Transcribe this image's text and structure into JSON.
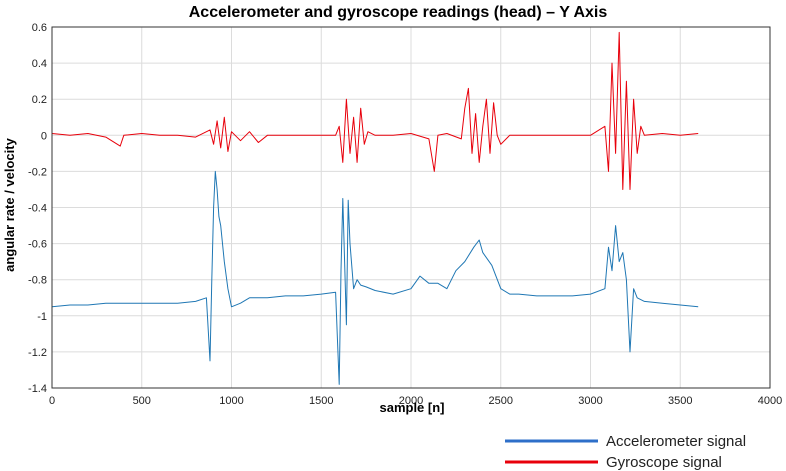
{
  "chart_data": {
    "type": "line",
    "title": "Accelerometer and gyroscope readings (head) – Y Axis",
    "xlabel": "sample [n]",
    "ylabel": "angular rate / velocity",
    "xlim": [
      0,
      4000
    ],
    "ylim": [
      -1.4,
      0.6
    ],
    "x_ticks": [
      0,
      500,
      1000,
      1500,
      2000,
      2500,
      3000,
      3500,
      4000
    ],
    "y_ticks": [
      -1.4,
      -1.2,
      -1,
      -0.8,
      -0.6,
      -0.4,
      -0.2,
      0,
      0.2,
      0.4,
      0.6
    ],
    "y_tick_labels": [
      "-1.4",
      "-1.2",
      "-1",
      "-0.8",
      "-0.6",
      "-0.4",
      "-0.2",
      "0",
      "0.2",
      "0.4",
      "0.6"
    ],
    "grid": true,
    "legend_position": "bottom-right, outside plot",
    "series": [
      {
        "name": "Accelerometer signal",
        "color": "#1f77b4",
        "x": [
          0,
          100,
          200,
          300,
          400,
          500,
          600,
          700,
          800,
          860,
          880,
          890,
          900,
          910,
          920,
          930,
          940,
          960,
          980,
          1000,
          1050,
          1100,
          1200,
          1300,
          1400,
          1500,
          1580,
          1600,
          1610,
          1620,
          1630,
          1640,
          1650,
          1660,
          1680,
          1700,
          1720,
          1750,
          1800,
          1900,
          2000,
          2050,
          2100,
          2150,
          2200,
          2250,
          2300,
          2350,
          2380,
          2400,
          2450,
          2500,
          2550,
          2600,
          2700,
          2800,
          2900,
          3000,
          3080,
          3100,
          3120,
          3140,
          3160,
          3180,
          3200,
          3220,
          3240,
          3260,
          3300,
          3400,
          3500,
          3600
        ],
        "y": [
          -0.95,
          -0.94,
          -0.94,
          -0.93,
          -0.93,
          -0.93,
          -0.93,
          -0.93,
          -0.92,
          -0.9,
          -1.25,
          -0.8,
          -0.4,
          -0.2,
          -0.3,
          -0.45,
          -0.5,
          -0.7,
          -0.85,
          -0.95,
          -0.93,
          -0.9,
          -0.9,
          -0.89,
          -0.89,
          -0.88,
          -0.87,
          -1.38,
          -0.75,
          -0.35,
          -0.7,
          -1.05,
          -0.36,
          -0.6,
          -0.85,
          -0.8,
          -0.83,
          -0.84,
          -0.86,
          -0.88,
          -0.85,
          -0.78,
          -0.82,
          -0.82,
          -0.85,
          -0.75,
          -0.7,
          -0.62,
          -0.58,
          -0.65,
          -0.72,
          -0.85,
          -0.88,
          -0.88,
          -0.89,
          -0.89,
          -0.89,
          -0.88,
          -0.85,
          -0.62,
          -0.75,
          -0.5,
          -0.7,
          -0.65,
          -0.8,
          -1.2,
          -0.85,
          -0.9,
          -0.92,
          -0.93,
          -0.94,
          -0.95
        ]
      },
      {
        "name": "Gyroscope signal",
        "color": "#e8000b",
        "x": [
          0,
          100,
          200,
          300,
          380,
          400,
          500,
          600,
          700,
          800,
          880,
          900,
          920,
          940,
          960,
          980,
          1000,
          1050,
          1100,
          1150,
          1200,
          1300,
          1400,
          1500,
          1580,
          1600,
          1620,
          1640,
          1660,
          1680,
          1700,
          1720,
          1740,
          1760,
          1800,
          1900,
          2000,
          2100,
          2130,
          2150,
          2200,
          2280,
          2300,
          2320,
          2340,
          2360,
          2380,
          2400,
          2420,
          2440,
          2460,
          2480,
          2500,
          2550,
          2600,
          2700,
          2800,
          2900,
          3000,
          3080,
          3100,
          3120,
          3140,
          3160,
          3180,
          3200,
          3220,
          3240,
          3260,
          3280,
          3300,
          3400,
          3500,
          3600
        ],
        "y": [
          0.01,
          0.0,
          0.01,
          -0.01,
          -0.06,
          0.0,
          0.01,
          0.0,
          0.0,
          -0.01,
          0.03,
          -0.05,
          0.08,
          -0.07,
          0.1,
          -0.09,
          0.02,
          -0.03,
          0.02,
          -0.04,
          0.0,
          0.0,
          0.0,
          0.0,
          0.0,
          0.05,
          -0.15,
          0.2,
          -0.1,
          0.1,
          -0.15,
          0.15,
          -0.05,
          0.02,
          0.0,
          0.0,
          0.01,
          -0.02,
          -0.2,
          0.0,
          0.01,
          -0.02,
          0.15,
          0.26,
          -0.1,
          0.12,
          -0.15,
          0.05,
          0.2,
          -0.1,
          0.18,
          0.0,
          -0.05,
          0.0,
          0.0,
          0.0,
          0.0,
          0.0,
          0.0,
          0.05,
          -0.2,
          0.4,
          -0.1,
          0.57,
          -0.3,
          0.3,
          -0.3,
          0.2,
          -0.1,
          0.05,
          0.0,
          0.01,
          0.0,
          0.01
        ]
      }
    ]
  }
}
